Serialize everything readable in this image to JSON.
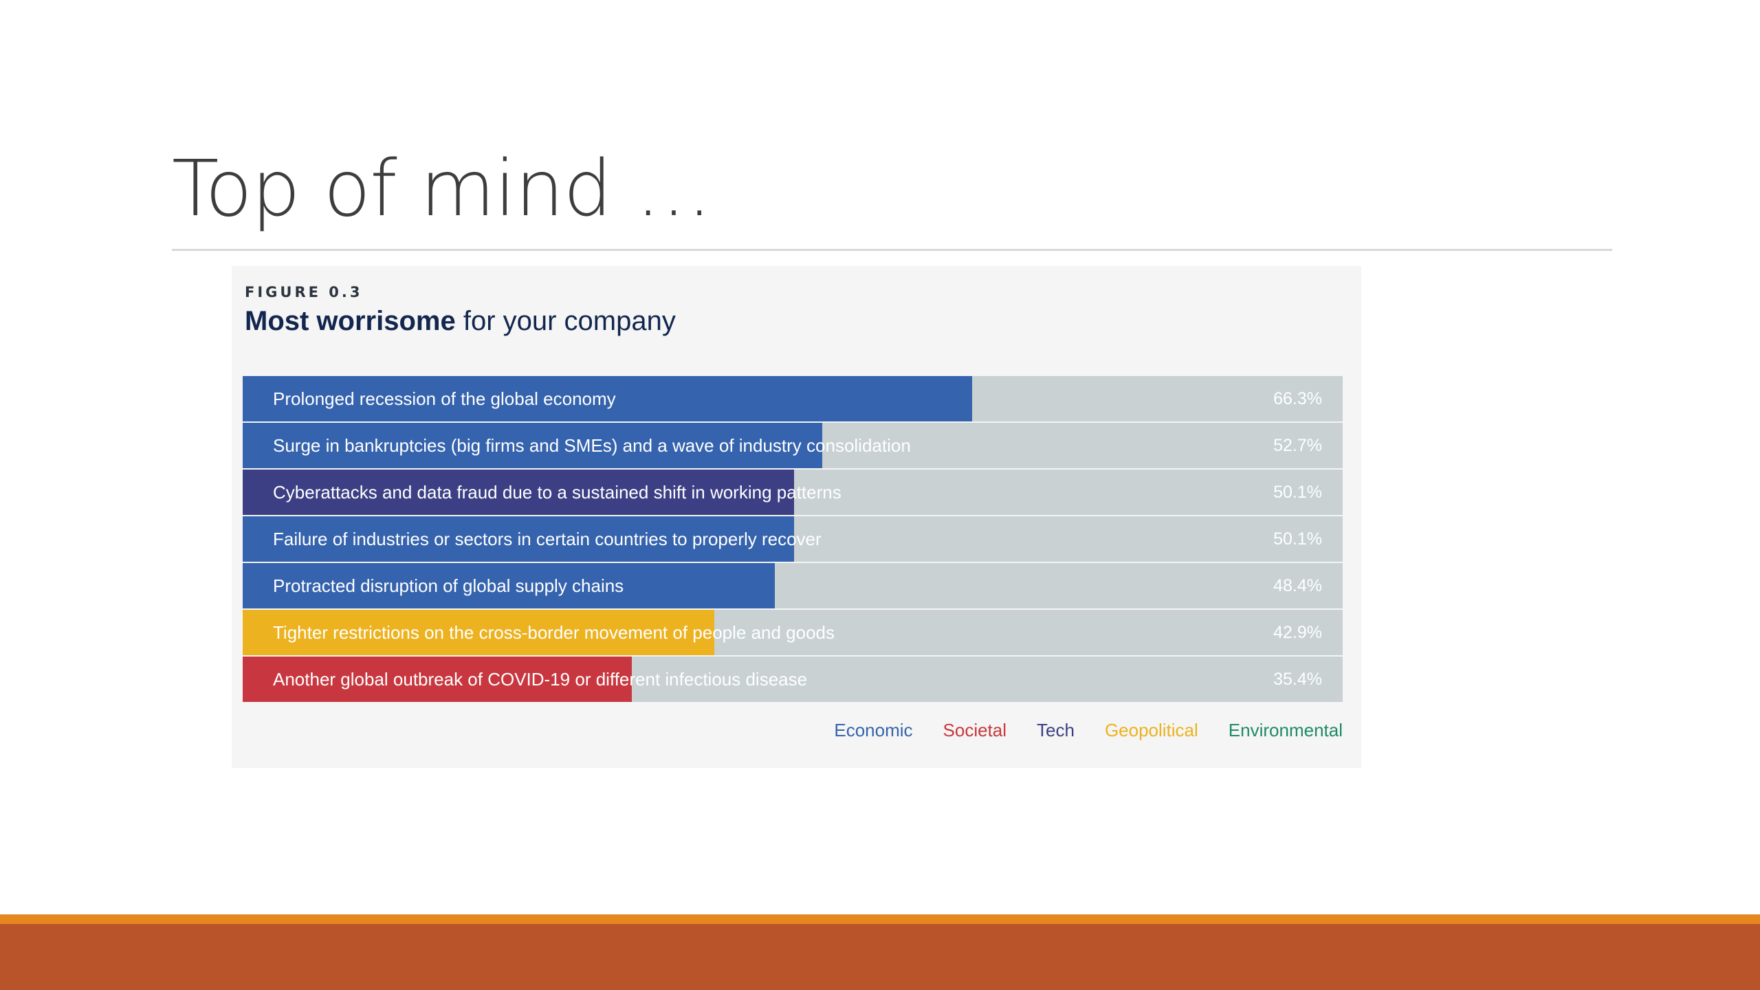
{
  "slide": {
    "title": "Top of mind …"
  },
  "figure": {
    "label": "FIGURE 0.3",
    "title_bold": "Most worrisome",
    "title_rest": " for your company"
  },
  "colors": {
    "track": "#c9d1d2",
    "Economic": "#3563ad",
    "Societal": "#c8373f",
    "Tech": "#3c3f84",
    "Geopolitical": "#ecb21f",
    "Environmental": "#1f8a66"
  },
  "chart_data": {
    "type": "bar",
    "orientation": "horizontal",
    "xlim": [
      0,
      100
    ],
    "unit": "%",
    "categories": [
      "Prolonged recession of the global economy",
      "Surge in bankruptcies (big firms and SMEs) and a wave of industry consolidation",
      "Cyberattacks and data fraud due to a sustained shift in working patterns",
      "Failure of industries or sectors in certain countries to properly recover",
      "Protracted disruption of global supply chains",
      "Tighter restrictions on the cross-border movement of people and goods",
      "Another global outbreak of COVID-19 or different infectious disease"
    ],
    "values": [
      66.3,
      52.7,
      50.1,
      50.1,
      48.4,
      42.9,
      35.4
    ],
    "value_labels": [
      "66.3%",
      "52.7%",
      "50.1%",
      "50.1%",
      "48.4%",
      "42.9%",
      "35.4%"
    ],
    "groups": [
      "Economic",
      "Economic",
      "Tech",
      "Economic",
      "Economic",
      "Geopolitical",
      "Societal"
    ],
    "legend": [
      "Economic",
      "Societal",
      "Tech",
      "Geopolitical",
      "Environmental"
    ],
    "legend_position": "bottom-right",
    "grid": false
  }
}
